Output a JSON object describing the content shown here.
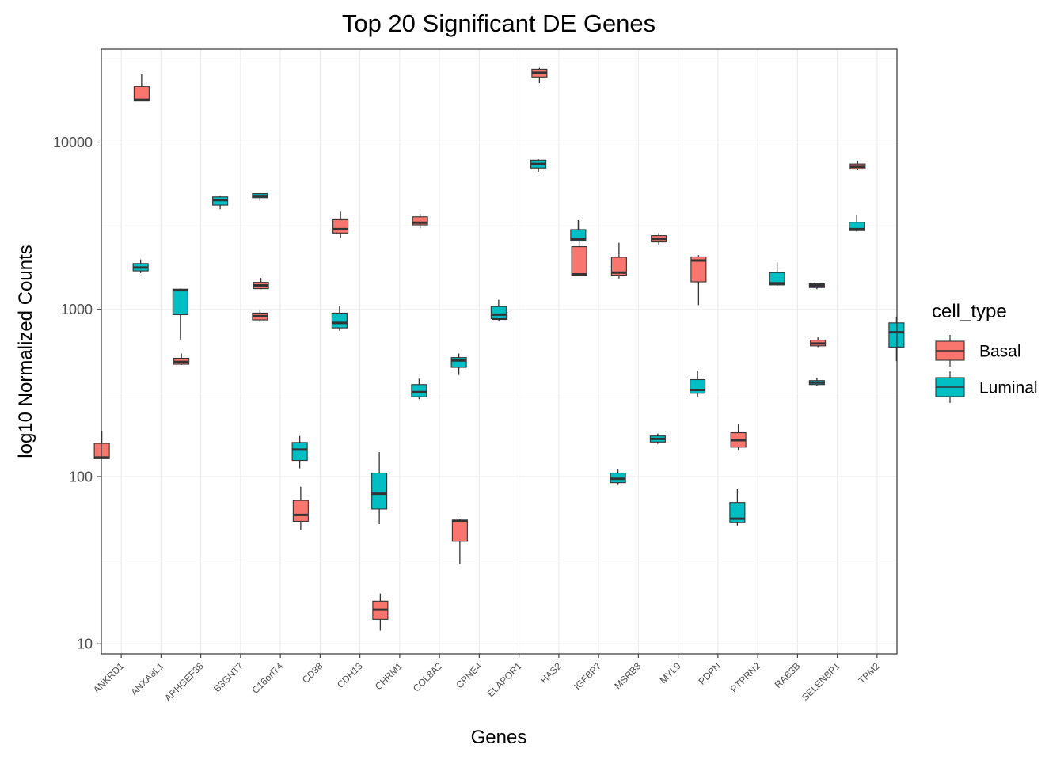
{
  "chart_data": {
    "type": "boxplot",
    "title": "Top 20 Significant DE Genes",
    "xlabel": "Genes",
    "ylabel": "log10 Normalized Counts",
    "yscale": "log10",
    "ylim": [
      8.7,
      36000
    ],
    "yticks": [
      10,
      100,
      1000,
      10000
    ],
    "ytick_labels": [
      "10",
      "100",
      "1000",
      "10000"
    ],
    "grid": true,
    "legend": {
      "title": "cell_type",
      "position": "right",
      "entries": [
        {
          "name": "Basal",
          "color": "#F8766D"
        },
        {
          "name": "Luminal",
          "color": "#00BFC4"
        }
      ]
    },
    "categories": [
      "ANKRD1",
      "ANXA8L1",
      "ARHGEF38",
      "B3GNT7",
      "C16orf74",
      "CD38",
      "CDH13",
      "CHRM1",
      "COL8A2",
      "CPNE4",
      "ELAPOR1",
      "HAS2",
      "IGFBP7",
      "MSRB3",
      "MYL9",
      "PDPN",
      "PTPRN2",
      "RAB3B",
      "SELENBP1",
      "TPM2"
    ],
    "series": [
      {
        "name": "Basal",
        "color": "#F8766D",
        "boxes": [
          {
            "gene": "ANKRD1",
            "min": 128,
            "q1": 128,
            "median": 130,
            "q3": 158,
            "max": 188
          },
          {
            "gene": "ANXA8L1",
            "min": 17600,
            "q1": 17600,
            "median": 17900,
            "q3": 21500,
            "max": 25400
          },
          {
            "gene": "ARHGEF38",
            "min": 465,
            "q1": 470,
            "median": 485,
            "q3": 510,
            "max": 545
          },
          {
            "gene": "C16orf74",
            "min": 1320,
            "q1": 1330,
            "median": 1390,
            "q3": 1450,
            "max": 1540
          },
          {
            "gene": "CD38",
            "min": 48,
            "q1": 54,
            "median": 59,
            "q3": 72,
            "max": 87
          },
          {
            "gene": "CDH13",
            "min": 2680,
            "q1": 2860,
            "median": 3020,
            "q3": 3440,
            "max": 3840
          },
          {
            "gene": "CHRM1",
            "min": 12,
            "q1": 14,
            "median": 16,
            "q3": 18,
            "max": 20
          },
          {
            "gene": "COL8A2",
            "min": 3060,
            "q1": 3200,
            "median": 3300,
            "q3": 3580,
            "max": 3720
          },
          {
            "gene": "CPNE4",
            "min": 30,
            "q1": 41,
            "median": 54,
            "q3": 55,
            "max": 56
          },
          {
            "gene": "ELAPOR1",
            "min": 845,
            "q1": 870,
            "median": 900,
            "q3": 960,
            "max": 1040
          },
          {
            "gene": "HAS2",
            "min": 22500,
            "q1": 24500,
            "median": 26000,
            "q3": 27300,
            "max": 27800
          },
          {
            "gene": "IGFBP7",
            "min": 1600,
            "q1": 1600,
            "median": 1620,
            "q3": 2370,
            "max": 3400
          },
          {
            "gene": "MSRB3",
            "min": 1530,
            "q1": 1600,
            "median": 1660,
            "q3": 2050,
            "max": 2500
          },
          {
            "gene": "MYL9",
            "min": 2420,
            "q1": 2530,
            "median": 2640,
            "q3": 2760,
            "max": 2860
          },
          {
            "gene": "PDPN",
            "min": 1060,
            "q1": 1460,
            "median": 1960,
            "q3": 2060,
            "max": 2110
          },
          {
            "gene": "PTPRN2",
            "min": 143,
            "q1": 150,
            "median": 165,
            "q3": 183,
            "max": 205
          },
          {
            "gene": "SELENBP1",
            "min": 595,
            "q1": 605,
            "median": 625,
            "q3": 655,
            "max": 680
          },
          {
            "gene": "TPM2",
            "min": 6800,
            "q1": 6900,
            "median": 7100,
            "q3": 7400,
            "max": 7700
          }
        ]
      },
      {
        "name": "Luminal",
        "color": "#00BFC4",
        "boxes": [
          {
            "gene": "ANKRD1",
            "min": 1650,
            "q1": 1700,
            "median": 1780,
            "q3": 1880,
            "max": 1990
          },
          {
            "gene": "ANXA8L1",
            "min": 660,
            "q1": 930,
            "median": 1300,
            "q3": 1320,
            "max": 1330
          },
          {
            "gene": "ARHGEF38",
            "min": 3970,
            "q1": 4200,
            "median": 4500,
            "q3": 4700,
            "max": 4760
          },
          {
            "gene": "B3GNT7",
            "min": 4450,
            "q1": 4650,
            "median": 4760,
            "q3": 4920,
            "max": 4960
          },
          {
            "gene": "C16orf74",
            "min": 112,
            "q1": 125,
            "median": 145,
            "q3": 160,
            "max": 175
          },
          {
            "gene": "CD38",
            "min": 745,
            "q1": 775,
            "median": 830,
            "q3": 950,
            "max": 1050
          },
          {
            "gene": "CDH13",
            "min": 52,
            "q1": 64,
            "median": 79,
            "q3": 105,
            "max": 140
          },
          {
            "gene": "CHRM1",
            "min": 290,
            "q1": 300,
            "median": 320,
            "q3": 355,
            "max": 385
          },
          {
            "gene": "COL8A2",
            "min": 405,
            "q1": 450,
            "median": 495,
            "q3": 515,
            "max": 545
          },
          {
            "gene": "CPNE4",
            "min": 860,
            "q1": 880,
            "median": 930,
            "q3": 1040,
            "max": 1140
          },
          {
            "gene": "ELAPOR1",
            "min": 6650,
            "q1": 7000,
            "median": 7400,
            "q3": 7800,
            "max": 7900
          },
          {
            "gene": "HAS2",
            "min": 2560,
            "q1": 2560,
            "median": 2620,
            "q3": 3000,
            "max": 3420
          },
          {
            "gene": "IGFBP7",
            "min": 90,
            "q1": 92,
            "median": 97,
            "q3": 105,
            "max": 110
          },
          {
            "gene": "MSRB3",
            "min": 157,
            "q1": 161,
            "median": 168,
            "q3": 175,
            "max": 181
          },
          {
            "gene": "MYL9",
            "min": 300,
            "q1": 315,
            "median": 330,
            "q3": 380,
            "max": 430
          },
          {
            "gene": "PDPN",
            "min": 51,
            "q1": 53,
            "median": 56,
            "q3": 70,
            "max": 84
          },
          {
            "gene": "PTPRN2",
            "min": 1380,
            "q1": 1400,
            "median": 1430,
            "q3": 1660,
            "max": 1910
          },
          {
            "gene": "RAB3B",
            "min": 350,
            "q1": 355,
            "median": 365,
            "q3": 375,
            "max": 390
          },
          {
            "gene": "SELENBP1",
            "min": 2920,
            "q1": 2960,
            "median": 3020,
            "q3": 3320,
            "max": 3660
          },
          {
            "gene": "TPM2",
            "min": 490,
            "q1": 595,
            "median": 730,
            "q3": 830,
            "max": 905
          }
        ]
      }
    ],
    "extra_boxes": [
      {
        "gene": "B3GNT7",
        "series": "Basal",
        "min": 840,
        "q1": 865,
        "median": 910,
        "q3": 950,
        "max": 990
      },
      {
        "gene": "RAB3B",
        "series": "Basal",
        "min": 1320,
        "q1": 1350,
        "median": 1390,
        "q3": 1420,
        "max": 1440
      }
    ]
  }
}
